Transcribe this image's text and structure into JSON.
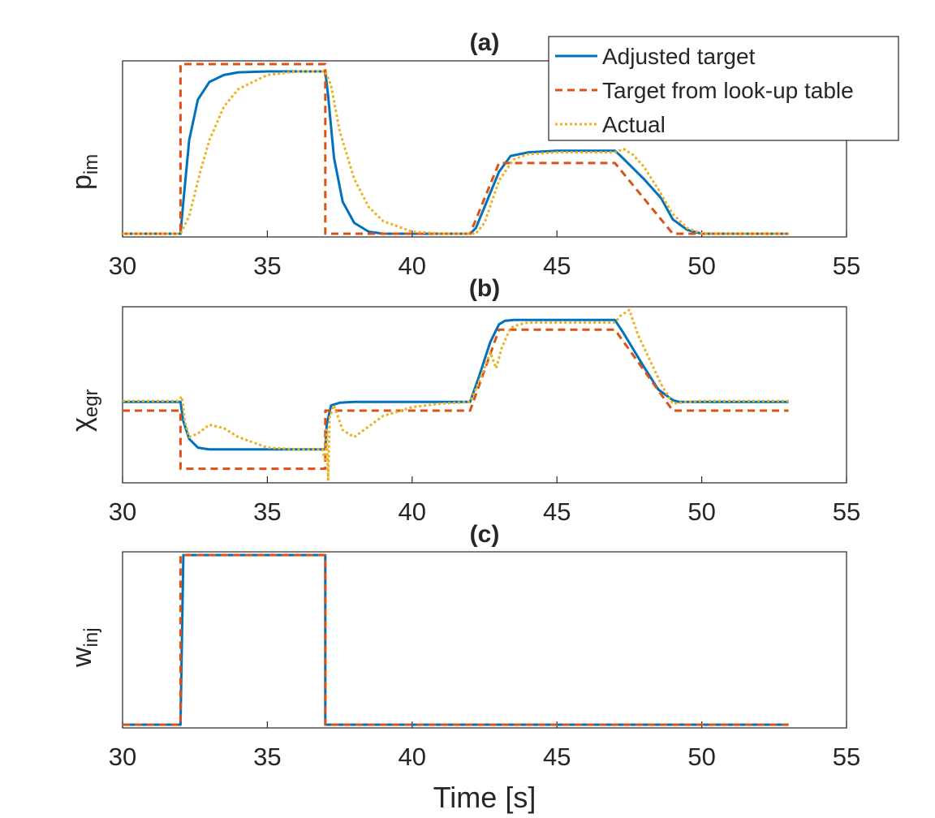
{
  "chart_data": [
    {
      "type": "line",
      "title": "(a)",
      "ylabel": "p",
      "ylabel_sub": "im",
      "xlabel": "",
      "xlim": [
        30,
        55
      ],
      "ylim": [
        0,
        1
      ],
      "xticks": [
        30,
        35,
        40,
        45,
        50,
        55
      ],
      "yticks": [],
      "legend": {
        "placement": "top-right",
        "entries": [
          "Adjusted target",
          "Target from look-up table",
          "Actual"
        ]
      },
      "series": [
        {
          "name": "Adjusted target",
          "color": "#0072BD",
          "style": "solid",
          "x": [
            30,
            32,
            32.1,
            32.3,
            32.6,
            33,
            33.5,
            34,
            35,
            36,
            37,
            37.1,
            37.3,
            37.6,
            38,
            38.5,
            39,
            40,
            41,
            42,
            42.2,
            43,
            43.4,
            44,
            45,
            46,
            47,
            47.2,
            48,
            48.6,
            49,
            49.5,
            50,
            51,
            53
          ],
          "values": [
            0.01,
            0.01,
            0.2,
            0.55,
            0.78,
            0.88,
            0.92,
            0.935,
            0.94,
            0.94,
            0.94,
            0.8,
            0.45,
            0.2,
            0.08,
            0.03,
            0.015,
            0.01,
            0.01,
            0.01,
            0.05,
            0.37,
            0.46,
            0.48,
            0.49,
            0.49,
            0.49,
            0.46,
            0.33,
            0.22,
            0.1,
            0.04,
            0.015,
            0.01,
            0.01
          ]
        },
        {
          "name": "Target from look-up table",
          "color": "#D95319",
          "style": "dashed",
          "x": [
            30,
            32,
            32,
            37,
            37,
            42,
            43,
            47,
            49,
            53
          ],
          "values": [
            0.01,
            0.01,
            1.0,
            1.0,
            0.01,
            0.01,
            0.42,
            0.42,
            0.01,
            0.01
          ],
          "band_end": 53
        },
        {
          "name": "Actual",
          "color": "#EDB120",
          "style": "dotted",
          "x": [
            30,
            32,
            32.3,
            32.7,
            33,
            33.5,
            34,
            35,
            36,
            37,
            37.2,
            37.5,
            38,
            38.5,
            39,
            40,
            41,
            42,
            42.2,
            42.5,
            43,
            43.5,
            44,
            45,
            46,
            47,
            47.3,
            47.6,
            48,
            48.5,
            49,
            49.5,
            50,
            51,
            53
          ],
          "values": [
            0.01,
            0.01,
            0.12,
            0.38,
            0.55,
            0.74,
            0.84,
            0.92,
            0.94,
            0.94,
            0.86,
            0.6,
            0.33,
            0.17,
            0.09,
            0.03,
            0.012,
            0.01,
            0.0,
            0.08,
            0.32,
            0.44,
            0.47,
            0.48,
            0.48,
            0.48,
            0.5,
            0.47,
            0.4,
            0.27,
            0.13,
            0.05,
            0.02,
            0.01,
            0.01
          ]
        }
      ]
    },
    {
      "type": "line",
      "title": "(b)",
      "ylabel": "χ",
      "ylabel_sub": "egr",
      "xlabel": "",
      "xlim": [
        30,
        55
      ],
      "ylim": [
        0,
        1
      ],
      "xticks": [
        30,
        35,
        40,
        45,
        50,
        55
      ],
      "yticks": [],
      "series": [
        {
          "name": "Adjusted target",
          "color": "#0072BD",
          "style": "solid",
          "x": [
            30,
            32,
            32.1,
            32.3,
            32.6,
            33,
            34,
            35,
            36,
            37,
            37.05,
            37.2,
            37.5,
            38,
            39,
            40,
            41,
            42,
            42.3,
            42.7,
            43,
            43.2,
            43.5,
            44,
            45,
            46,
            47,
            47.3,
            48,
            48.5,
            49,
            49.2,
            50,
            53
          ],
          "values": [
            0.46,
            0.46,
            0.35,
            0.25,
            0.2,
            0.19,
            0.19,
            0.19,
            0.19,
            0.19,
            0.33,
            0.44,
            0.455,
            0.46,
            0.46,
            0.46,
            0.46,
            0.46,
            0.6,
            0.8,
            0.9,
            0.92,
            0.925,
            0.925,
            0.925,
            0.925,
            0.925,
            0.85,
            0.66,
            0.53,
            0.47,
            0.46,
            0.46,
            0.46
          ]
        },
        {
          "name": "Target from look-up table",
          "color": "#D95319",
          "style": "dashed",
          "x": [
            30,
            32,
            32,
            37,
            37,
            42,
            43,
            47,
            49,
            53
          ],
          "values": [
            0.41,
            0.41,
            0.08,
            0.08,
            0.41,
            0.41,
            0.87,
            0.87,
            0.41,
            0.41
          ]
        },
        {
          "name": "Actual",
          "color": "#EDB120",
          "style": "dotted",
          "x": [
            30,
            31.9,
            32.05,
            32.15,
            32.3,
            32.6,
            33,
            33.5,
            34,
            35,
            36,
            36.9,
            37,
            37.05,
            37.1,
            37.15,
            37.3,
            37.6,
            38,
            38.5,
            39,
            40,
            41,
            42,
            42.3,
            42.7,
            42.9,
            43.1,
            43.4,
            43.7,
            44,
            45,
            46,
            47,
            47.2,
            47.5,
            47.8,
            48.2,
            48.6,
            49,
            49.5,
            50,
            53
          ],
          "values": [
            0.465,
            0.465,
            0.49,
            0.35,
            0.26,
            0.28,
            0.33,
            0.31,
            0.26,
            0.2,
            0.19,
            0.19,
            0.12,
            0.3,
            0.0,
            0.37,
            0.44,
            0.3,
            0.26,
            0.32,
            0.38,
            0.43,
            0.45,
            0.46,
            0.57,
            0.74,
            0.65,
            0.77,
            0.88,
            0.9,
            0.91,
            0.91,
            0.91,
            0.91,
            0.95,
            1.0,
            0.84,
            0.7,
            0.56,
            0.45,
            0.46,
            0.465,
            0.465
          ]
        }
      ]
    },
    {
      "type": "line",
      "title": "(c)",
      "ylabel": "w",
      "ylabel_sub": "inj",
      "xlabel": "Time [s]",
      "xlim": [
        30,
        55
      ],
      "ylim": [
        0,
        1
      ],
      "xticks": [
        30,
        35,
        40,
        45,
        50,
        55
      ],
      "yticks": [],
      "series": [
        {
          "name": "Adjusted target",
          "color": "#0072BD",
          "style": "solid",
          "x": [
            30,
            32,
            32.1,
            37,
            37,
            53
          ],
          "values": [
            0,
            0,
            1,
            1,
            0,
            0
          ]
        },
        {
          "name": "Target from look-up table",
          "color": "#D95319",
          "style": "dashed",
          "x": [
            30,
            32,
            32,
            37,
            37,
            53
          ],
          "values": [
            0,
            0,
            1,
            1,
            0,
            0
          ]
        }
      ]
    }
  ]
}
